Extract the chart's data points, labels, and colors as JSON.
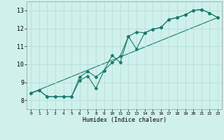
{
  "xlabel": "Humidex (Indice chaleur)",
  "bg_color": "#cff0eb",
  "line_color": "#1a7a6e",
  "grid_color": "#b0ddd8",
  "xlim": [
    -0.5,
    23.5
  ],
  "ylim": [
    7.5,
    13.5
  ],
  "xticks": [
    0,
    1,
    2,
    3,
    4,
    5,
    6,
    7,
    8,
    9,
    10,
    11,
    12,
    13,
    14,
    15,
    16,
    17,
    18,
    19,
    20,
    21,
    22,
    23
  ],
  "yticks": [
    8,
    9,
    10,
    11,
    12,
    13
  ],
  "series1_x": [
    0,
    1,
    2,
    3,
    4,
    5,
    6,
    7,
    8,
    9,
    10,
    11,
    12,
    13,
    14,
    15,
    16,
    17,
    18,
    19,
    20,
    21,
    22,
    23
  ],
  "series1_y": [
    8.4,
    8.55,
    8.2,
    8.2,
    8.2,
    8.2,
    9.3,
    9.6,
    9.3,
    9.65,
    10.1,
    10.45,
    11.55,
    11.8,
    11.75,
    11.95,
    12.05,
    12.5,
    12.6,
    12.75,
    13.0,
    13.05,
    12.85,
    12.6
  ],
  "series2_x": [
    0,
    1,
    2,
    3,
    4,
    5,
    6,
    7,
    8,
    9,
    10,
    11,
    12,
    13,
    14,
    15,
    16,
    17,
    18,
    19,
    20,
    21,
    22,
    23
  ],
  "series2_y": [
    8.4,
    8.55,
    8.2,
    8.2,
    8.2,
    8.2,
    9.1,
    9.35,
    8.65,
    9.65,
    10.5,
    10.1,
    11.55,
    10.85,
    11.75,
    11.95,
    12.05,
    12.5,
    12.6,
    12.75,
    13.0,
    13.05,
    12.85,
    12.6
  ],
  "trend_x": [
    0,
    23
  ],
  "trend_y": [
    8.4,
    12.6
  ]
}
